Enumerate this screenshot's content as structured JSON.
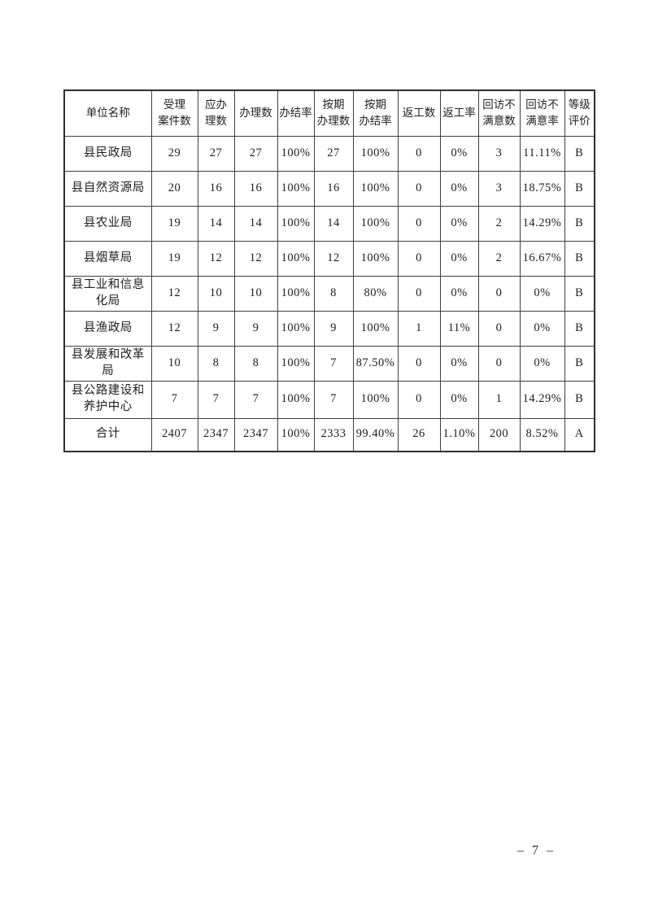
{
  "table": {
    "headers": [
      "单位名称",
      "受理\n案件数",
      "应办\n理数",
      "办理数",
      "办结率",
      "按期\n办理数",
      "按期\n办结率",
      "返工数",
      "返工率",
      "回访不\n满意数",
      "回访不\n满意率",
      "等级\n评价"
    ],
    "rows": [
      [
        "县民政局",
        "29",
        "27",
        "27",
        "100%",
        "27",
        "100%",
        "0",
        "0%",
        "3",
        "11.11%",
        "B"
      ],
      [
        "县自然资源局",
        "20",
        "16",
        "16",
        "100%",
        "16",
        "100%",
        "0",
        "0%",
        "3",
        "18.75%",
        "B"
      ],
      [
        "县农业局",
        "19",
        "14",
        "14",
        "100%",
        "14",
        "100%",
        "0",
        "0%",
        "2",
        "14.29%",
        "B"
      ],
      [
        "县烟草局",
        "19",
        "12",
        "12",
        "100%",
        "12",
        "100%",
        "0",
        "0%",
        "2",
        "16.67%",
        "B"
      ],
      [
        "县工业和信息化局",
        "12",
        "10",
        "10",
        "100%",
        "8",
        "80%",
        "0",
        "0%",
        "0",
        "0%",
        "B"
      ],
      [
        "县渔政局",
        "12",
        "9",
        "9",
        "100%",
        "9",
        "100%",
        "1",
        "11%",
        "0",
        "0%",
        "B"
      ],
      [
        "县发展和改革局",
        "10",
        "8",
        "8",
        "100%",
        "7",
        "87.50%",
        "0",
        "0%",
        "0",
        "0%",
        "B"
      ],
      [
        "县公路建设和\n养护中心",
        "7",
        "7",
        "7",
        "100%",
        "7",
        "100%",
        "0",
        "0%",
        "1",
        "14.29%",
        "B"
      ],
      [
        "合计",
        "2407",
        "2347",
        "2347",
        "100%",
        "2333",
        "99.40%",
        "26",
        "1.10%",
        "200",
        "8.52%",
        "A"
      ]
    ]
  },
  "footer": {
    "page_number": "– 7 –"
  }
}
